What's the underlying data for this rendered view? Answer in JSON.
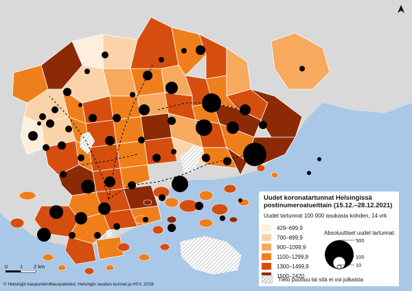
{
  "colors": {
    "water": "#a9c7e6",
    "land_other": "#d9d9d9",
    "c1": "#fdeedd",
    "c2": "#fbd3aa",
    "c3": "#f7a95e",
    "c4": "#ef7f1a",
    "c5": "#d64e0f",
    "c6": "#8c2a06",
    "dots": "#000000"
  },
  "legend": {
    "title": "Uudet koronatartunnat Helsingissä postinumeroalueittain (15.12.–28.12.2021)",
    "subtitle": "Uudet tartunnat 100 000 asukasta kohden, 14 vrk",
    "classes": [
      {
        "label": "429–699,9",
        "color": "#fdeedd"
      },
      {
        "label": "700–899,9",
        "color": "#fbd3aa"
      },
      {
        "label": "900–1099,9",
        "color": "#f7a95e"
      },
      {
        "label": "1100–1299,9",
        "color": "#ef7f1a"
      },
      {
        "label": "1300–1499,9",
        "color": "#d64e0f"
      },
      {
        "label": "1500–2420",
        "color": "#8c2a06"
      }
    ],
    "no_data": "Tieto puuttuu tai sitä ei voi julkaista",
    "absolute_title": "Absoluuttiset uudet tartunnat",
    "absolute_values": [
      "500",
      "100",
      "10"
    ]
  },
  "scale": {
    "labels": [
      "0",
      "1",
      "2 km"
    ]
  },
  "credit": "© Helsingin kaupunkimittauspalvelut, Helsingin seudun kunnat ja HSY, 2018.",
  "north_icon": "north-arrow-icon"
}
